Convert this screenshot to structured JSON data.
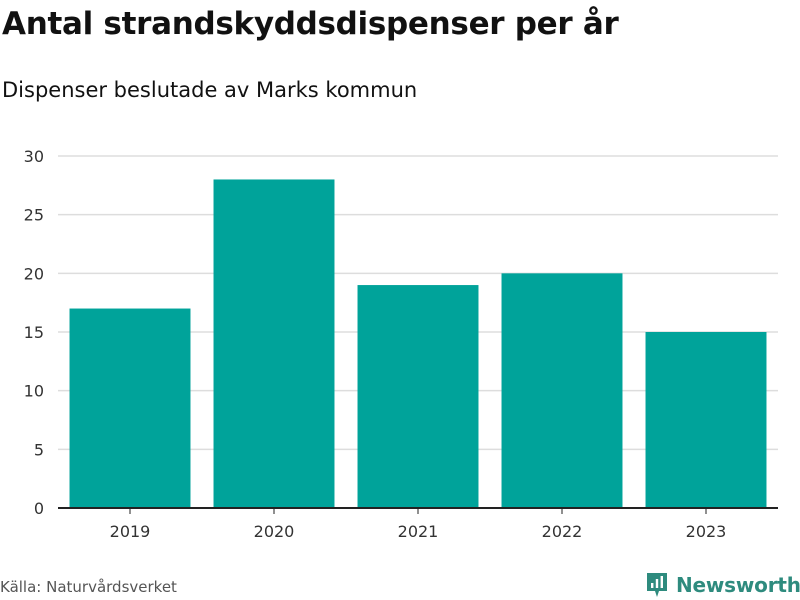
{
  "colors": {
    "bar": "#00a39a",
    "grid": "#dddddd",
    "axis": "#222222",
    "tick_text": "#333333",
    "brand": "#2e8b7e"
  },
  "chart_data": {
    "type": "bar",
    "title": "Antal strandskyddsdispenser per år",
    "subtitle": "Dispenser beslutade av Marks kommun",
    "categories": [
      "2019",
      "2020",
      "2021",
      "2022",
      "2023"
    ],
    "values": [
      17,
      28,
      19,
      20,
      15
    ],
    "ylim": [
      0,
      30
    ],
    "yticks": [
      0,
      5,
      10,
      15,
      20,
      25,
      30
    ],
    "xlabel": "",
    "ylabel": "",
    "grid": true,
    "legend": "none"
  },
  "footer": {
    "source": "Källa: Naturvårdsverket",
    "brand": "Newsworthy",
    "brand_icon": "newsworthy-logo-icon"
  }
}
